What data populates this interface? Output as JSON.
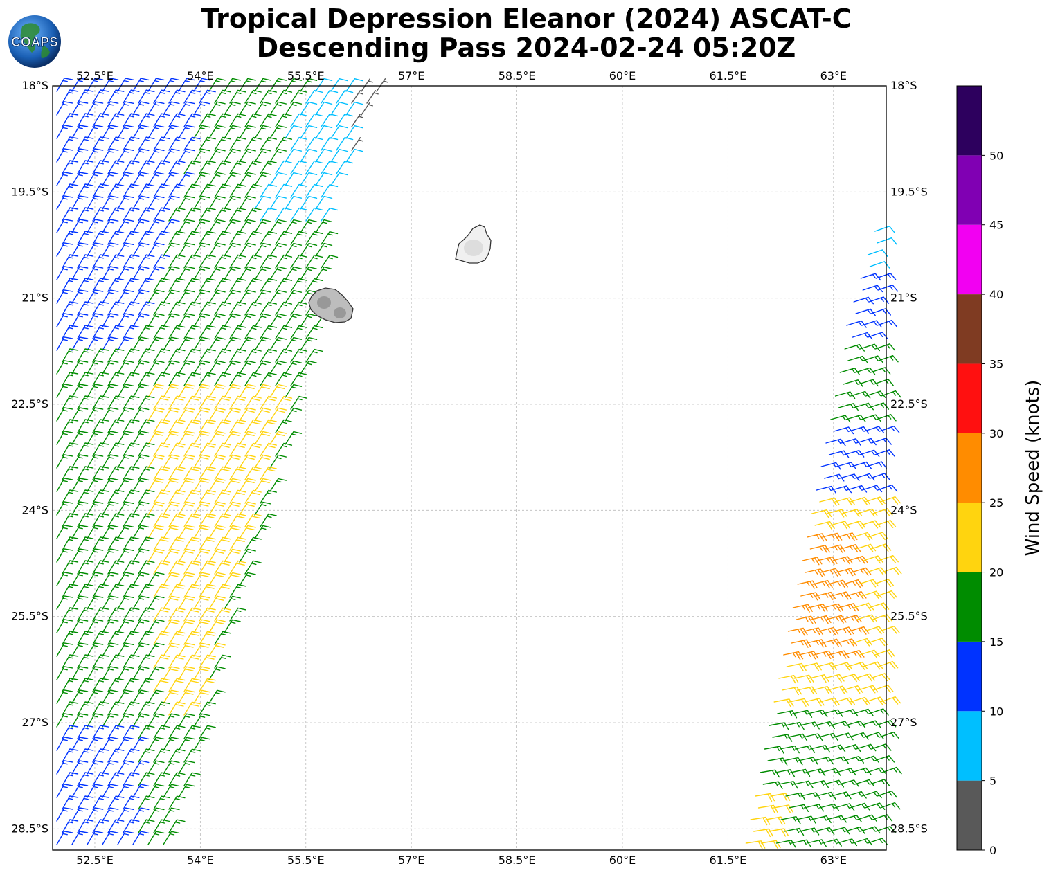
{
  "title": {
    "line1": "Tropical Depression Eleanor (2024) ASCAT-C",
    "line2": "Descending Pass 2024-02-24 05:20Z"
  },
  "logo": {
    "text": "COAPS",
    "icon": "globe-icon"
  },
  "map": {
    "lon_range": [
      51.9,
      63.75
    ],
    "lat_range": [
      -28.8,
      -18.0
    ],
    "lon_ticks": [
      {
        "value": 52.5,
        "label": "52.5°E"
      },
      {
        "value": 54.0,
        "label": "54°E"
      },
      {
        "value": 55.5,
        "label": "55.5°E"
      },
      {
        "value": 57.0,
        "label": "57°E"
      },
      {
        "value": 58.5,
        "label": "58.5°E"
      },
      {
        "value": 60.0,
        "label": "60°E"
      },
      {
        "value": 61.5,
        "label": "61.5°E"
      },
      {
        "value": 63.0,
        "label": "63°E"
      }
    ],
    "lat_ticks": [
      {
        "value": -18.0,
        "label": "18°S"
      },
      {
        "value": -19.5,
        "label": "19.5°S"
      },
      {
        "value": -21.0,
        "label": "21°S"
      },
      {
        "value": -22.5,
        "label": "22.5°S"
      },
      {
        "value": -24.0,
        "label": "24°S"
      },
      {
        "value": -25.5,
        "label": "25.5°S"
      },
      {
        "value": -27.0,
        "label": "27°S"
      },
      {
        "value": -28.5,
        "label": "28.5°S"
      }
    ],
    "gridlines": true,
    "islands": [
      {
        "name": "Mauritius",
        "lon": 57.55,
        "lat": -20.25
      },
      {
        "name": "Réunion",
        "lon": 55.5,
        "lat": -21.1
      }
    ]
  },
  "colorbar": {
    "title": "Wind Speed (knots)",
    "ticks": [
      "0",
      "5",
      "10",
      "15",
      "20",
      "25",
      "30",
      "35",
      "40",
      "45",
      "50"
    ],
    "bins": [
      {
        "min": 0,
        "max": 5,
        "color": "#595959"
      },
      {
        "min": 5,
        "max": 10,
        "color": "#00bfff"
      },
      {
        "min": 10,
        "max": 15,
        "color": "#0033ff"
      },
      {
        "min": 15,
        "max": 20,
        "color": "#008c00"
      },
      {
        "min": 20,
        "max": 25,
        "color": "#ffd40f"
      },
      {
        "min": 25,
        "max": 30,
        "color": "#ff8c00"
      },
      {
        "min": 30,
        "max": 35,
        "color": "#ff1010"
      },
      {
        "min": 35,
        "max": 40,
        "color": "#7f3b22"
      },
      {
        "min": 40,
        "max": 45,
        "color": "#f200f2"
      },
      {
        "min": 45,
        "max": 50,
        "color": "#8000b3"
      },
      {
        "min": 50,
        "max": 55,
        "color": "#2d005e"
      }
    ]
  }
}
